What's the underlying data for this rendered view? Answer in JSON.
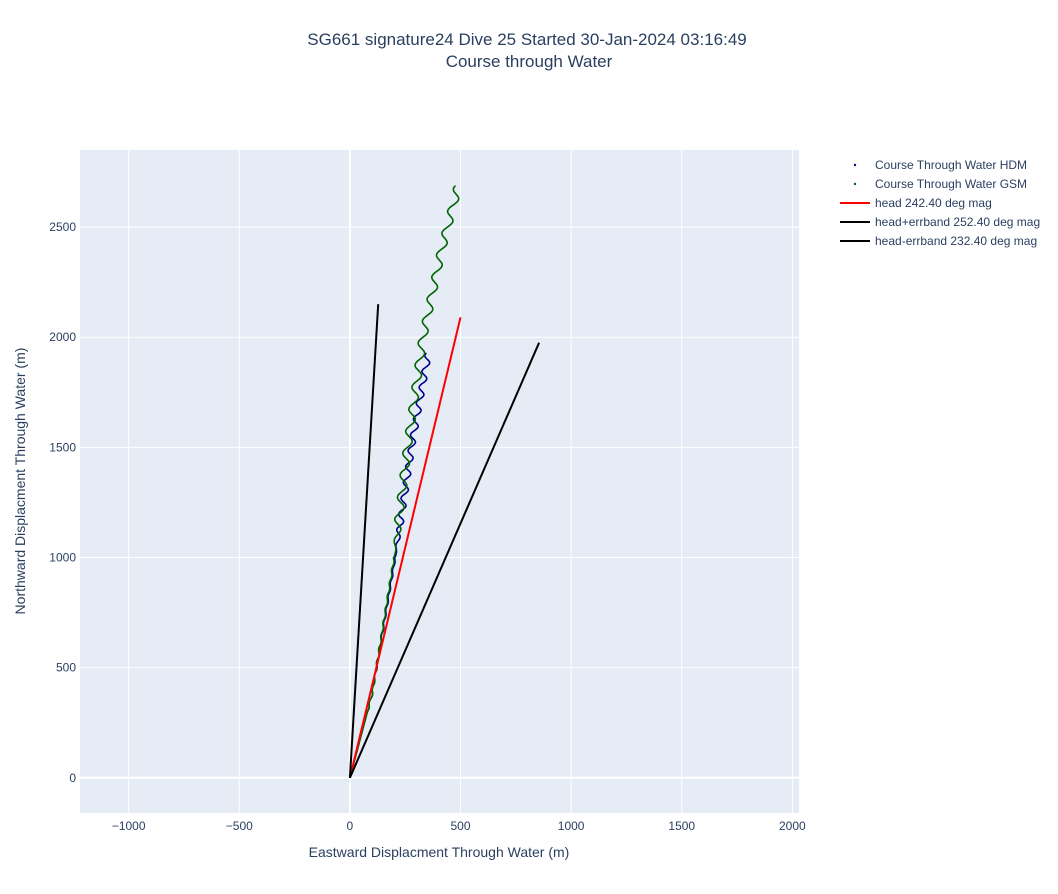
{
  "chart_data": {
    "type": "line",
    "title": "SG661 signature24 Dive 25 Started 30-Jan-2024 03:16:49",
    "subtitle": "Course through Water",
    "xlabel": "Eastward Displacment Through Water (m)",
    "ylabel": "Northward Displacment Through Water (m)",
    "xlim": [
      -1220,
      2030
    ],
    "ylim": [
      -160,
      2850
    ],
    "xticks": [
      -1000,
      -500,
      0,
      500,
      1000,
      1500,
      2000
    ],
    "yticks": [
      0,
      500,
      1000,
      1500,
      2000,
      2500
    ],
    "xtick_labels": [
      "−1000",
      "−500",
      "0",
      "500",
      "1000",
      "1500",
      "2000"
    ],
    "ytick_labels": [
      "0",
      "500",
      "1000",
      "1500",
      "2000",
      "2500"
    ],
    "grid": true,
    "legend_position": "right",
    "series": [
      {
        "name": "Course Through Water HDM",
        "kind": "wiggle",
        "color": "#00008b",
        "marker": "dot",
        "path": [
          [
            0,
            0
          ],
          [
            100,
            380
          ],
          [
            205,
            1000
          ],
          [
            285,
            1540
          ],
          [
            355,
            1930
          ]
        ],
        "wiggle_amplitude": 14,
        "wiggle_period": 72,
        "wiggle_start": 1000
      },
      {
        "name": "Course Through Water GSM",
        "kind": "wiggle",
        "color": "#006400",
        "marker": "dot",
        "path": [
          [
            0,
            0
          ],
          [
            100,
            380
          ],
          [
            200,
            1000
          ],
          [
            260,
            1500
          ],
          [
            330,
            2000
          ],
          [
            415,
            2400
          ],
          [
            490,
            2690
          ]
        ],
        "wiggle_amplitude": 18,
        "wiggle_period": 100,
        "wiggle_start": 1000
      },
      {
        "name": "head 242.40 deg mag",
        "kind": "line",
        "color": "#ff0000",
        "x": [
          0,
          500
        ],
        "y": [
          0,
          2090
        ]
      },
      {
        "name": "head+errband 252.40 deg mag",
        "kind": "line",
        "color": "#000000",
        "x": [
          0,
          855
        ],
        "y": [
          0,
          1975
        ]
      },
      {
        "name": "head-errband 232.40 deg mag",
        "kind": "line",
        "color": "#000000",
        "x": [
          0,
          128
        ],
        "y": [
          0,
          2150
        ]
      }
    ]
  }
}
